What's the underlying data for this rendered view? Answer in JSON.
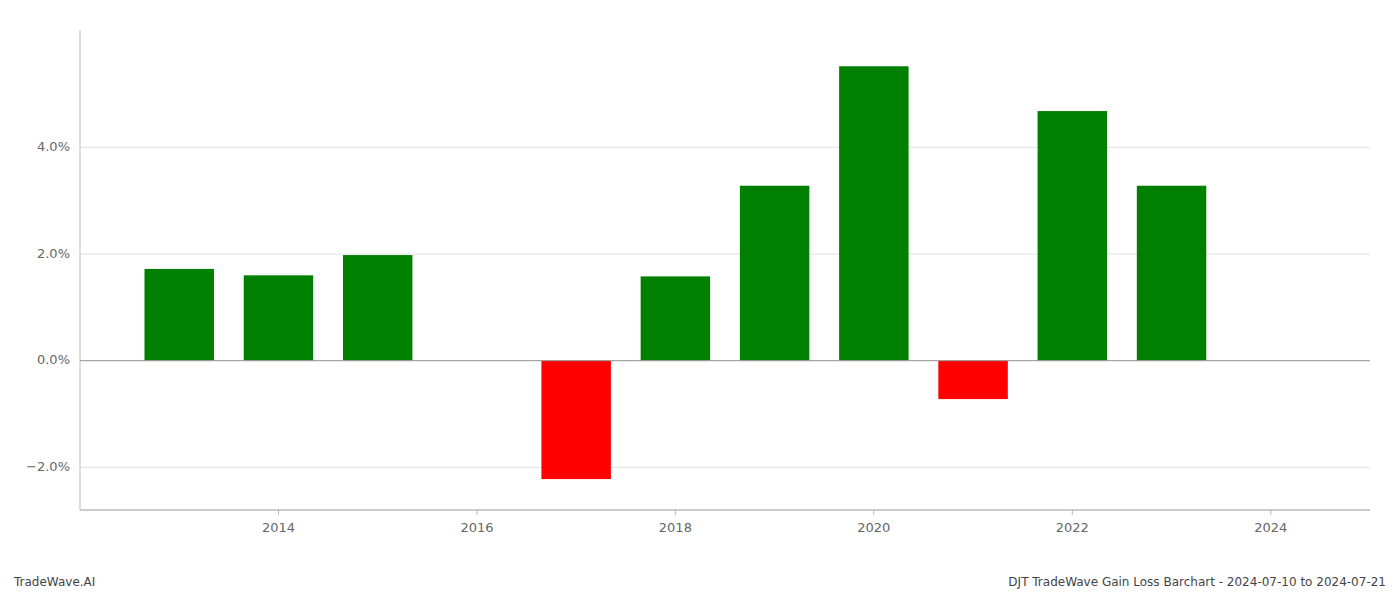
{
  "chart_data": {
    "type": "bar",
    "x": [
      2013,
      2014,
      2015,
      2017,
      2018,
      2019,
      2020,
      2021,
      2022,
      2023
    ],
    "values": [
      1.72,
      1.6,
      1.98,
      -2.22,
      1.58,
      3.28,
      5.52,
      -0.72,
      4.68,
      3.28
    ],
    "colors": [
      "#008000",
      "#008000",
      "#008000",
      "#ff0000",
      "#008000",
      "#008000",
      "#008000",
      "#ff0000",
      "#008000",
      "#008000"
    ],
    "xlim": [
      2012.0,
      2025.0
    ],
    "xticks": [
      2014,
      2016,
      2018,
      2020,
      2022,
      2024
    ],
    "ylim": [
      -2.8,
      6.2
    ],
    "yticks": [
      {
        "value": -2.0,
        "label": "−2.0%"
      },
      {
        "value": 0.0,
        "label": "0.0%"
      },
      {
        "value": 2.0,
        "label": "2.0%"
      },
      {
        "value": 4.0,
        "label": "4.0%"
      }
    ],
    "grid": true,
    "annotations": [
      "TradeWave.AI",
      "DJT TradeWave Gain Loss Barchart - 2024-07-10 to 2024-07-21"
    ]
  }
}
